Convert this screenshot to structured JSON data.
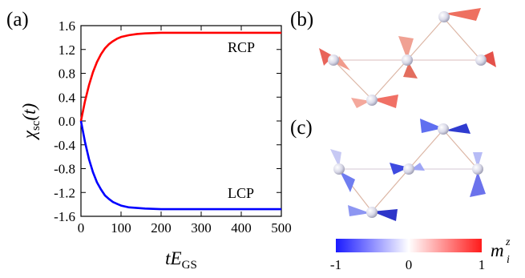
{
  "figure": {
    "panels": {
      "a": "(a)",
      "b": "(b)",
      "c": "(c)"
    },
    "colorbar": {
      "label_main": "m",
      "label_sub": "i",
      "label_sup": "z",
      "min": -1,
      "max": 1,
      "ticks": [
        "-1",
        "0",
        "1"
      ],
      "colors": {
        "low": "#1a1aff",
        "mid": "#ffffff",
        "high": "#ff1a1a"
      }
    },
    "spin_b": {
      "caption": "",
      "mz_values": [
        0.9,
        0.7,
        0.8,
        0.6,
        0.85
      ]
    },
    "spin_c": {
      "caption": "",
      "mz_values": [
        -0.9,
        -0.5,
        -0.8,
        -0.3,
        -0.85
      ]
    }
  },
  "chart_data": {
    "type": "line",
    "title": "",
    "xlabel_main": "tE",
    "xlabel_sub": "GS",
    "ylabel_main": "χ",
    "ylabel_sub": "sc",
    "ylabel_arg": "(t)",
    "xlim": [
      0,
      500
    ],
    "ylim": [
      -1.6,
      1.6
    ],
    "xticks": [
      "0",
      "100",
      "200",
      "300",
      "400",
      "500"
    ],
    "yticks": [
      "1.6",
      "1.2",
      "0.8",
      "0.4",
      "0.0",
      "-0.4",
      "-0.8",
      "-1.2",
      "-1.6"
    ],
    "series": [
      {
        "name": "RCP",
        "color": "#ff0000",
        "x": [
          0,
          10,
          20,
          30,
          40,
          50,
          60,
          70,
          80,
          90,
          100,
          120,
          140,
          160,
          180,
          200,
          250,
          300,
          350,
          400,
          450,
          500
        ],
        "y": [
          0.0,
          0.33,
          0.6,
          0.82,
          0.99,
          1.12,
          1.22,
          1.29,
          1.34,
          1.38,
          1.41,
          1.44,
          1.46,
          1.47,
          1.475,
          1.48,
          1.48,
          1.48,
          1.48,
          1.48,
          1.48,
          1.48
        ]
      },
      {
        "name": "LCP",
        "color": "#0000ff",
        "x": [
          0,
          10,
          20,
          30,
          40,
          50,
          60,
          70,
          80,
          90,
          100,
          120,
          140,
          160,
          180,
          200,
          250,
          300,
          350,
          400,
          450,
          500
        ],
        "y": [
          0.0,
          -0.35,
          -0.64,
          -0.86,
          -1.03,
          -1.15,
          -1.25,
          -1.31,
          -1.36,
          -1.39,
          -1.42,
          -1.45,
          -1.46,
          -1.47,
          -1.475,
          -1.48,
          -1.48,
          -1.48,
          -1.48,
          -1.48,
          -1.48,
          -1.48
        ]
      }
    ]
  }
}
